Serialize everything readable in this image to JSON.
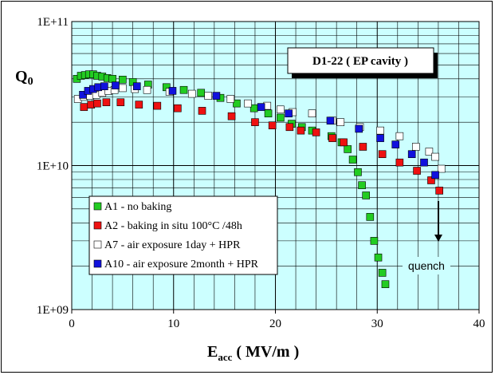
{
  "chart_data": {
    "type": "scatter",
    "title": "",
    "annotation_box": "D1-22 ( EP cavity )",
    "ylabel_main": "Q",
    "ylabel_sub": "0",
    "xlabel_main": "E",
    "xlabel_sub": "acc",
    "xlabel_rest": " ( MV/m )",
    "xlim": [
      0,
      40
    ],
    "ylim": [
      1000000000,
      100000000000
    ],
    "yscale": "log",
    "grid": true,
    "plot_background": "#ccffff",
    "x_ticks": [
      "0",
      "10",
      "20",
      "30",
      "40"
    ],
    "y_ticks": [
      "1E+09",
      "1E+10",
      "1E+11"
    ],
    "legend_position": "lower-left",
    "quench_label": "quench",
    "series": [
      {
        "name": "A1 - no baking",
        "color": "#22cc22",
        "x": [
          0.5,
          0.9,
          1.3,
          1.7,
          2.1,
          2.5,
          3.0,
          3.5,
          4.0,
          5.0,
          6.0,
          7.5,
          9.3,
          11.0,
          12.7,
          14.6,
          16.2,
          17.9,
          19.3,
          20.5,
          21.6,
          22.6,
          23.6,
          25.5,
          26.5,
          27.1,
          27.6,
          28.1,
          28.5,
          28.9,
          29.3,
          29.7,
          30.1,
          30.5,
          30.8
        ],
        "y": [
          40000000000.0,
          42000000000.0,
          42500000000.0,
          43000000000.0,
          43000000000.0,
          42000000000.0,
          41500000000.0,
          40500000000.0,
          40000000000.0,
          39500000000.0,
          38000000000.0,
          36500000000.0,
          35000000000.0,
          33500000000.0,
          32000000000.0,
          29500000000.0,
          27000000000.0,
          25000000000.0,
          23000000000.0,
          21500000000.0,
          19500000000.0,
          18500000000.0,
          17500000000.0,
          16000000000.0,
          14500000000.0,
          13000000000.0,
          11000000000.0,
          9000000000.0,
          7300000000.0,
          6200000000.0,
          4400000000.0,
          3000000000.0,
          2300000000.0,
          1800000000.0,
          1500000000.0
        ]
      },
      {
        "name": "A2 - baking in situ 100°C /48h",
        "color": "#ee1111",
        "x": [
          1.2,
          1.9,
          2.5,
          3.4,
          4.8,
          6.6,
          8.4,
          10.4,
          12.8,
          15.7,
          18.0,
          19.7,
          21.4,
          22.5,
          24.0,
          25.6,
          26.7,
          28.6,
          30.5,
          32.2,
          33.9,
          35.3,
          36.1
        ],
        "y": [
          25500000000.0,
          26500000000.0,
          27000000000.0,
          27500000000.0,
          27500000000.0,
          26500000000.0,
          26000000000.0,
          25000000000.0,
          24000000000.0,
          22000000000.0,
          20000000000.0,
          19000000000.0,
          18500000000.0,
          17500000000.0,
          17000000000.0,
          15500000000.0,
          14500000000.0,
          13500000000.0,
          12000000000.0,
          10500000000.0,
          9200000000.0,
          7900000000.0,
          6700000000.0
        ]
      },
      {
        "name": "A7 - air exposure 1day + HPR",
        "color": "#ffffff",
        "x": [
          0.6,
          1.2,
          1.8,
          2.4,
          3.0,
          3.6,
          4.2,
          5.0,
          6.2,
          7.4,
          9.6,
          11.8,
          13.4,
          15.6,
          17.3,
          19.2,
          20.5,
          21.7,
          23.6,
          25.6,
          26.4,
          28.3,
          30.3,
          32.2,
          33.8,
          35.1,
          35.7,
          36.3
        ],
        "y": [
          29000000000.0,
          30000000000.0,
          30500000000.0,
          31000000000.0,
          32000000000.0,
          33000000000.0,
          33500000000.0,
          34500000000.0,
          34000000000.0,
          33500000000.0,
          32500000000.0,
          31500000000.0,
          30500000000.0,
          29000000000.0,
          27000000000.0,
          26000000000.0,
          24500000000.0,
          23500000000.0,
          23000000000.0,
          20500000000.0,
          20000000000.0,
          18500000000.0,
          17500000000.0,
          16000000000.0,
          13500000000.0,
          12500000000.0,
          11500000000.0,
          9500000000.0
        ]
      },
      {
        "name": "A10 - air exposure 2month + HPR",
        "color": "#1111dd",
        "x": [
          1.1,
          1.6,
          2.1,
          2.6,
          3.2,
          4.3,
          6.4,
          9.9,
          14.2,
          18.6,
          21.3,
          25.4,
          28.2,
          30.3,
          31.8,
          33.4,
          34.6,
          35.7
        ],
        "y": [
          31000000000.0,
          33000000000.0,
          34000000000.0,
          35000000000.0,
          35500000000.0,
          36000000000.0,
          35500000000.0,
          33000000000.0,
          30500000000.0,
          25500000000.0,
          23000000000.0,
          20500000000.0,
          18000000000.0,
          15500000000.0,
          14000000000.0,
          12000000000.0,
          10500000000.0,
          8600000000.0
        ]
      }
    ]
  }
}
